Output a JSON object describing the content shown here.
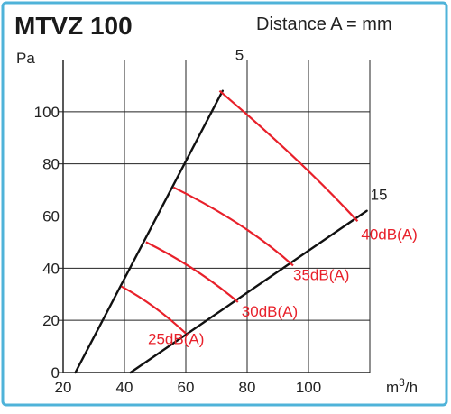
{
  "chart_data": {
    "type": "line",
    "title": "MTVZ 100",
    "subtitle": "Distance A = mm",
    "ylabel": "Pa",
    "xlabel_base": "m",
    "xlabel_sup": "3",
    "xlabel_tail": "/h",
    "xlim": [
      20,
      120
    ],
    "ylim": [
      0,
      120
    ],
    "x_ticks": [
      20,
      40,
      60,
      80,
      100
    ],
    "y_ticks": [
      0,
      20,
      40,
      60,
      80,
      100
    ],
    "grid": true,
    "colors": {
      "frame": "#4fb3d9",
      "grid": "#222222",
      "distance_line": "#111111",
      "db_curve": "#e8202a",
      "db_label": "#e8202a"
    },
    "distance_lines": [
      {
        "label": "5",
        "points": [
          [
            24,
            0
          ],
          [
            72,
            108
          ]
        ]
      },
      {
        "label": "15",
        "points": [
          [
            42,
            0
          ],
          [
            119,
            62
          ]
        ]
      }
    ],
    "db_curves": [
      {
        "label": "25dB(A)",
        "points": [
          [
            39,
            33
          ],
          [
            50,
            26
          ],
          [
            60,
            15
          ]
        ]
      },
      {
        "label": "30dB(A)",
        "points": [
          [
            47,
            50
          ],
          [
            64,
            40
          ],
          [
            77,
            27
          ]
        ]
      },
      {
        "label": "35dB(A)",
        "points": [
          [
            56,
            71
          ],
          [
            80,
            57
          ],
          [
            95,
            41
          ]
        ]
      },
      {
        "label": "40dB(A)",
        "points": [
          [
            71,
            108
          ],
          [
            98,
            81
          ],
          [
            116,
            58
          ]
        ]
      }
    ]
  }
}
